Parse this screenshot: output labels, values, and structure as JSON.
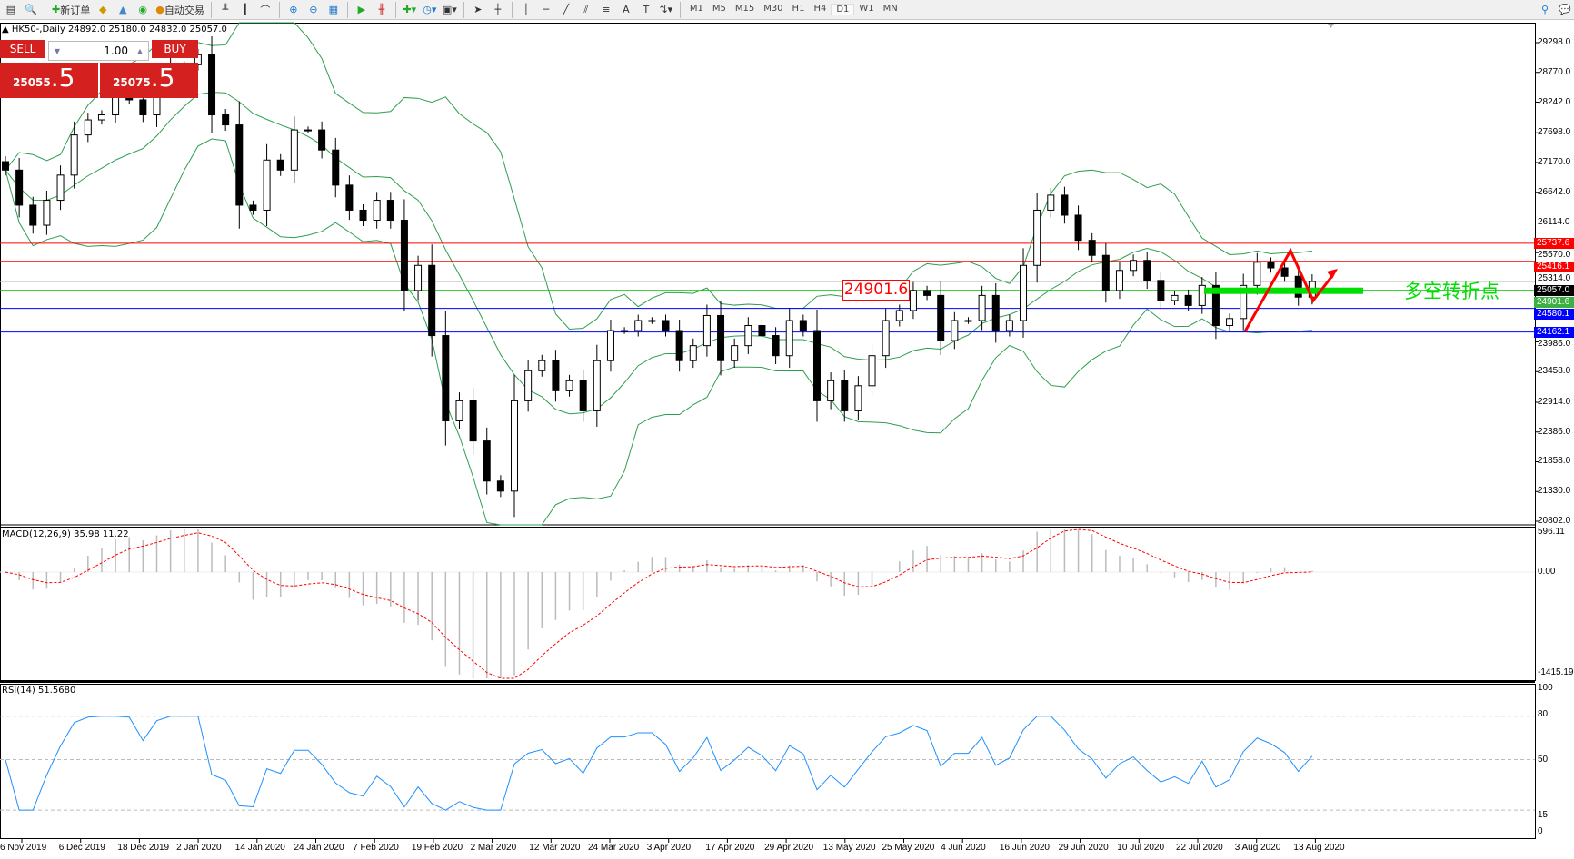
{
  "toolbar": {
    "new_order": "新订单",
    "auto_trading": "自动交易",
    "timeframes": [
      "M1",
      "M5",
      "M15",
      "M30",
      "H1",
      "H4",
      "D1",
      "W1",
      "MN"
    ],
    "active_timeframe": "D1"
  },
  "header": {
    "symbol_info": "HK50-,Daily  24892.0 25180.0 24832.0 25057.0"
  },
  "trade_panel": {
    "sell_label": "SELL",
    "buy_label": "BUY",
    "volume": "1.00",
    "sell_price_main": "25055",
    "sell_price_big": ".5",
    "buy_price_main": "25075",
    "buy_price_big": ".5"
  },
  "annotations": {
    "level_box": "24901.6",
    "note": "多空转折点"
  },
  "colors": {
    "up": "#ffffff",
    "down": "#000000",
    "bands": "#2e9e4e",
    "resistance": "#ff0000",
    "support": "#0000ff",
    "pivot": "#00e000",
    "macd_signal": "#ff0000",
    "rsi": "#1e90ff"
  },
  "chart_data": {
    "type": "candlestick",
    "symbol": "HK50-",
    "period": "Daily",
    "price_ticks": [
      "29298.0",
      "28770.0",
      "28242.0",
      "27698.0",
      "27170.0",
      "26642.0",
      "26114.0",
      "25570.0",
      "25314.0",
      "23986.0",
      "23458.0",
      "22914.0",
      "22386.0",
      "21858.0",
      "21330.0",
      "20802.0"
    ],
    "price_tick_values": [
      29298,
      28770,
      28242,
      27698,
      27170,
      26642,
      26114,
      25570,
      25314,
      23986,
      23458,
      22914,
      22386,
      21858,
      21330,
      20802
    ],
    "ylim": [
      20802,
      29298
    ],
    "closes": [
      27036,
      26413,
      26057,
      26500,
      26947,
      27660,
      27927,
      28016,
      28372,
      28283,
      28016,
      28640,
      28906,
      28906,
      29084,
      28016,
      27838,
      26413,
      26324,
      27214,
      27036,
      27749,
      27749,
      27392,
      26769,
      26324,
      26146,
      26500,
      26146,
      24899,
      25344,
      24098,
      22584,
      22940,
      22227,
      21515,
      21337,
      22940,
      23474,
      23652,
      23118,
      23296,
      22762,
      23652,
      24187,
      24187,
      24365,
      24365,
      24187,
      23652,
      23919,
      24454,
      23652,
      23919,
      24276,
      24098,
      23741,
      24365,
      24187,
      22940,
      23296,
      22762,
      23207,
      23741,
      24365,
      24543,
      24899,
      24810,
      24009,
      24365,
      24365,
      24810,
      24187,
      24365,
      25344,
      26324,
      26591,
      26235,
      25789,
      25522,
      24899,
      25255,
      25433,
      25077,
      24721,
      24810,
      24632,
      24988,
      24276,
      24400,
      24988,
      25400,
      25300,
      25150,
      24780,
      25057
    ],
    "levels": [
      {
        "value": 25737.6,
        "label": "25737.6",
        "color": "#ff0000"
      },
      {
        "value": 25416.1,
        "label": "25416.1",
        "color": "#ff0000"
      },
      {
        "value": 25057.0,
        "label": "25057.0",
        "color": "#000000",
        "line": "#c0c0c0"
      },
      {
        "value": 24901.6,
        "label": "24901.6",
        "color": "#3cb043",
        "line": "#00c000"
      },
      {
        "value": 24580.1,
        "label": "24580.1",
        "color": "#0000ff"
      },
      {
        "value": 24162.1,
        "label": "24162.1",
        "color": "#0000ff"
      }
    ],
    "dates": [
      "6 Nov 2019",
      "6 Dec 2019",
      "18 Dec 2019",
      "2 Jan 2020",
      "14 Jan 2020",
      "24 Jan 2020",
      "7 Feb 2020",
      "19 Feb 2020",
      "2 Mar 2020",
      "12 Mar 2020",
      "24 Mar 2020",
      "3 Apr 2020",
      "17 Apr 2020",
      "29 Apr 2020",
      "13 May 2020",
      "25 May 2020",
      "4 Jun 2020",
      "16 Jun 2020",
      "29 Jun 2020",
      "10 Jul 2020",
      "22 Jul 2020",
      "3 Aug 2020",
      "13 Aug 2020"
    ],
    "macd": {
      "label": "MACD(12,26,9) 35.98 11.22",
      "max": "596.11",
      "zero": "0.00",
      "min": "-1415.19",
      "range": [
        -1415.19,
        596.11
      ]
    },
    "rsi": {
      "label": "RSI(14) 51.5680",
      "ticks": [
        "100",
        "80",
        "50",
        "15",
        "0"
      ],
      "levels": [
        80,
        50,
        15
      ]
    }
  }
}
